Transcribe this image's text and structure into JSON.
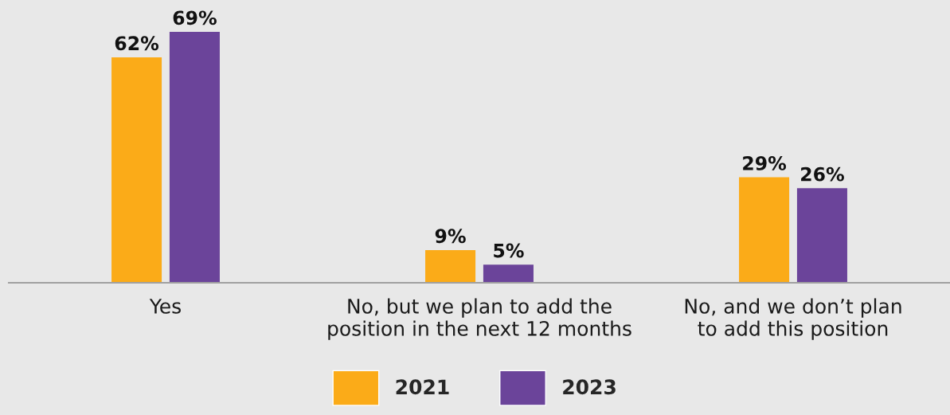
{
  "chart_data": {
    "type": "bar",
    "categories": [
      "Yes",
      "No, but we plan to add the\nposition in the next 12 months",
      "No, and we don’t plan\nto add this position"
    ],
    "series": [
      {
        "name": "2021",
        "color": "#fbab18",
        "values": [
          62,
          9,
          29
        ],
        "value_labels": [
          "62%",
          "9%",
          "29%"
        ]
      },
      {
        "name": "2023",
        "color": "#6b449a",
        "values": [
          69,
          5,
          26
        ],
        "value_labels": [
          "69%",
          "5%",
          "26%"
        ]
      }
    ],
    "legend": "bottom",
    "grid": false
  }
}
